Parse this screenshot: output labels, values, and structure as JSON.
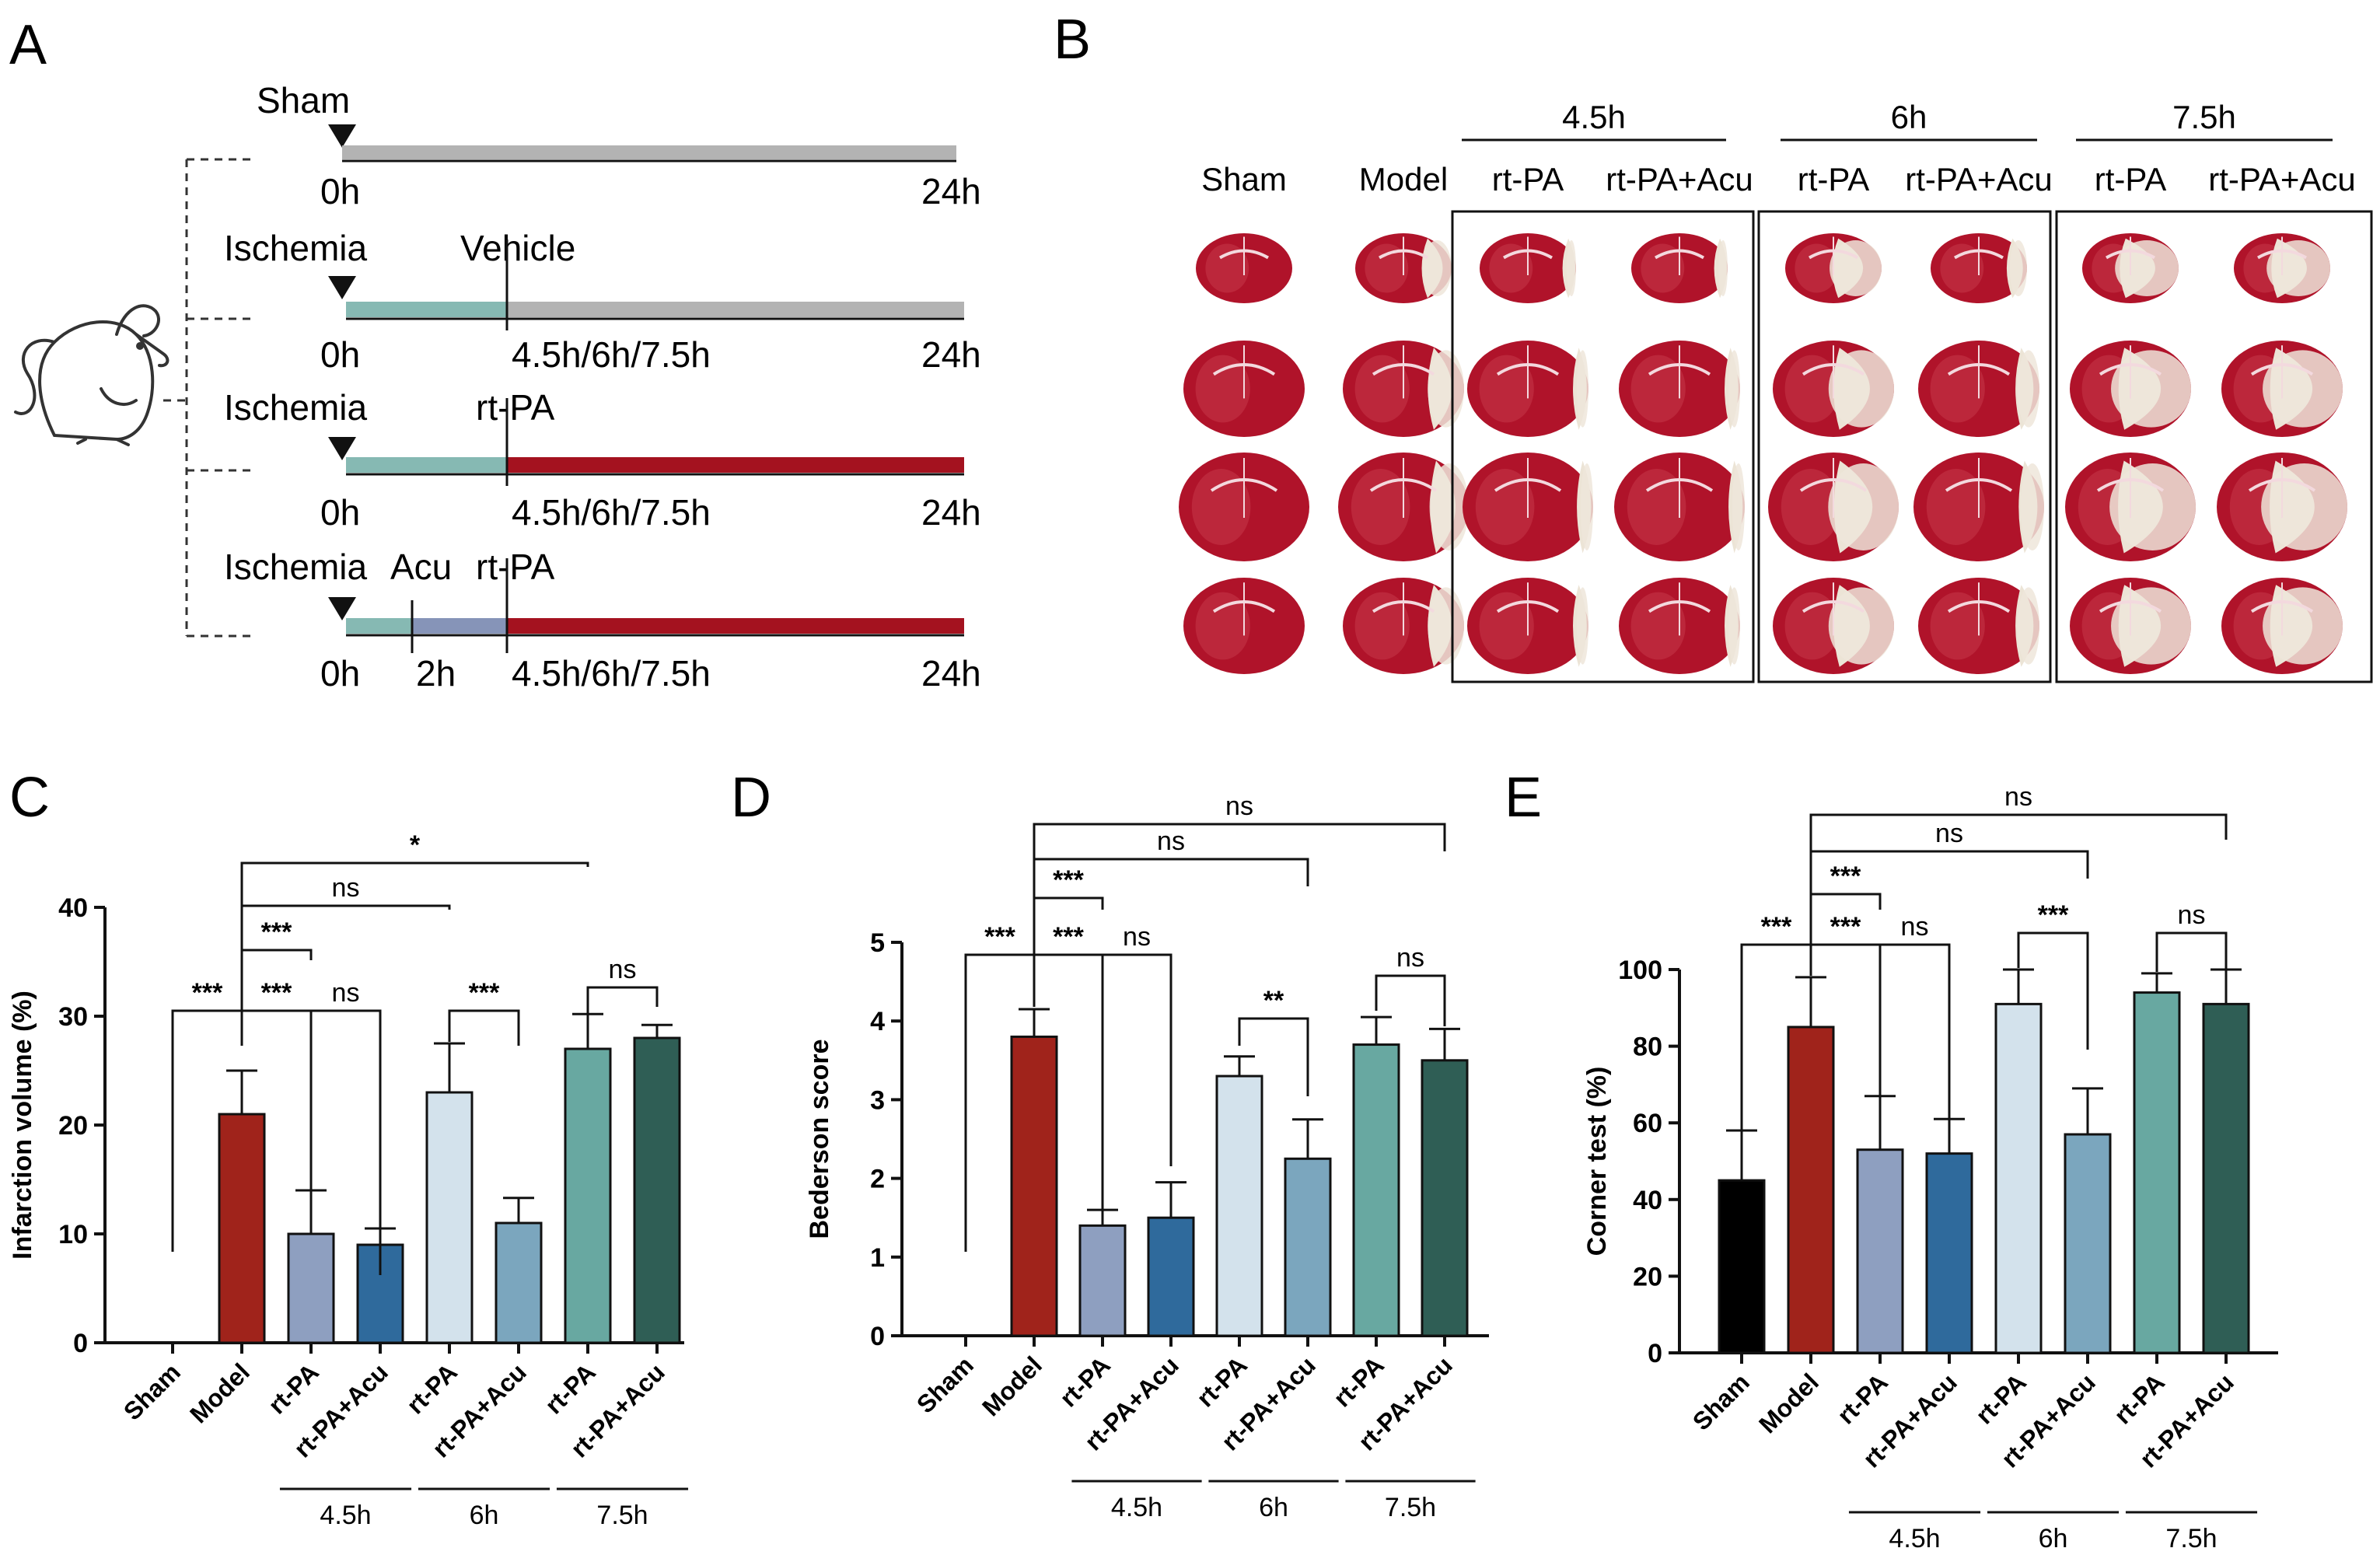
{
  "panels": {
    "a": "A",
    "b": "B",
    "c": "C",
    "d": "D",
    "e": "E"
  },
  "colors": {
    "sham_bar": "#000000",
    "model": "#a0231b",
    "rtpa_45": "#8e9fc0",
    "acu_45": "#2f6a9c",
    "rtpa_6": "#d3e2ec",
    "acu_6": "#7ba6be",
    "rtpa_75": "#68a8a1",
    "acu_75": "#2f5e55",
    "timeline_gray": "#b3b3b3",
    "timeline_teal": "#86b9b3",
    "timeline_purple": "#8694b8",
    "timeline_red": "#a4121f"
  },
  "timeline": {
    "rows": [
      {
        "event1": "Sham",
        "start": "0h",
        "end": "24h"
      },
      {
        "event1": "Ischemia",
        "event2": "Vehicle",
        "start": "0h",
        "mid": "4.5h/6h/7.5h",
        "end": "24h"
      },
      {
        "event1": "Ischemia",
        "event2": "rt-PA",
        "start": "0h",
        "mid": "4.5h/6h/7.5h",
        "end": "24h"
      },
      {
        "event1": "Ischemia",
        "event_acu": "Acu",
        "event2": "rt-PA",
        "start": "0h",
        "t2": "2h",
        "mid": "4.5h/6h/7.5h",
        "end": "24h"
      }
    ],
    "mouse_icon": "mouse-icon"
  },
  "brains": {
    "group_headers": [
      "4.5h",
      "6h",
      "7.5h"
    ],
    "columns": [
      "Sham",
      "Model",
      "rt-PA",
      "rt-PA+Acu",
      "rt-PA",
      "rt-PA+Acu",
      "rt-PA",
      "rt-PA+Acu"
    ],
    "image": "brain-slice-photos"
  },
  "chart_data": [
    {
      "panel": "C",
      "type": "bar",
      "ylabel": "Infarction volume (%)",
      "ylim": [
        0,
        40
      ],
      "yticks": [
        0,
        10,
        20,
        30,
        40
      ],
      "categories": [
        "Sham",
        "Model",
        "rt-PA",
        "rt-PA+Acu",
        "rt-PA",
        "rt-PA+Acu",
        "rt-PA",
        "rt-PA+Acu"
      ],
      "values": [
        0,
        21,
        10,
        9,
        23,
        11,
        27,
        28
      ],
      "errors": [
        0,
        4,
        4,
        1.5,
        4.5,
        2.3,
        3.2,
        1.2
      ],
      "groups": [
        "4.5h",
        "6h",
        "7.5h"
      ],
      "annotations": [
        "*",
        "ns",
        "***",
        "***",
        "***",
        "ns",
        "***",
        "ns"
      ]
    },
    {
      "panel": "D",
      "type": "bar",
      "ylabel": "Bederson score",
      "ylim": [
        0,
        5
      ],
      "yticks": [
        0,
        1,
        2,
        3,
        4,
        5
      ],
      "categories": [
        "Sham",
        "Model",
        "rt-PA",
        "rt-PA+Acu",
        "rt-PA",
        "rt-PA+Acu",
        "rt-PA",
        "rt-PA+Acu"
      ],
      "values": [
        0,
        3.8,
        1.4,
        1.5,
        3.3,
        2.25,
        3.7,
        3.5
      ],
      "errors": [
        0,
        0.35,
        0.2,
        0.45,
        0.25,
        0.5,
        0.35,
        0.4
      ],
      "groups": [
        "4.5h",
        "6h",
        "7.5h"
      ],
      "annotations": [
        "ns",
        "ns",
        "***",
        "***",
        "***",
        "ns",
        "**",
        "ns"
      ]
    },
    {
      "panel": "E",
      "type": "bar",
      "ylabel": "Corner test (%)",
      "ylim": [
        0,
        100
      ],
      "yticks": [
        0,
        20,
        40,
        60,
        80,
        100
      ],
      "categories": [
        "Sham",
        "Model",
        "rt-PA",
        "rt-PA+Acu",
        "rt-PA",
        "rt-PA+Acu",
        "rt-PA",
        "rt-PA+Acu"
      ],
      "values": [
        45,
        85,
        53,
        52,
        91,
        57,
        94,
        91
      ],
      "errors": [
        13,
        13,
        14,
        9,
        9,
        12,
        5,
        9
      ],
      "groups": [
        "4.5h",
        "6h",
        "7.5h"
      ],
      "annotations": [
        "ns",
        "ns",
        "***",
        "***",
        "***",
        "ns",
        "***",
        "ns"
      ]
    }
  ]
}
